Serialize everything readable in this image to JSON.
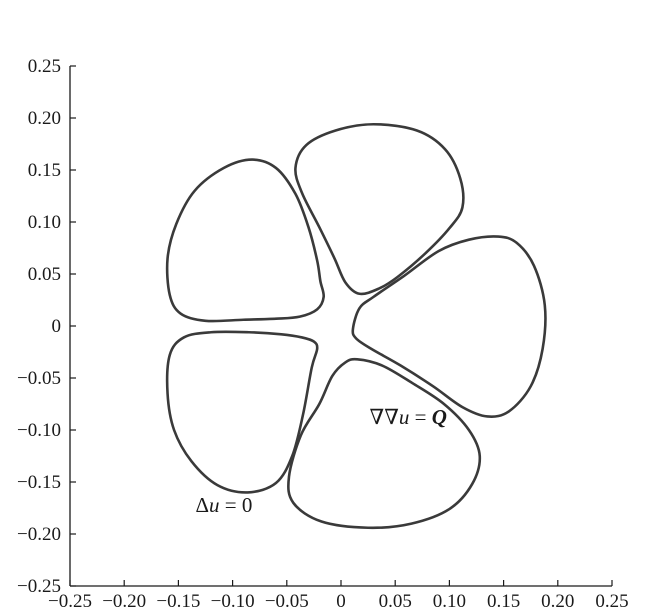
{
  "chart_data": {
    "type": "line",
    "title": "",
    "xlabel": "",
    "ylabel": "",
    "xlim": [
      -0.25,
      0.25
    ],
    "ylim": [
      -0.25,
      0.25
    ],
    "grid": false,
    "legend": "none",
    "x_ticks": [
      -0.25,
      -0.2,
      -0.15,
      -0.1,
      -0.05,
      0,
      0.05,
      0.1,
      0.15,
      0.2,
      0.25
    ],
    "x_tick_labels": [
      "−0.25",
      "−0.20",
      "−0.15",
      "−0.10",
      "−0.05",
      "0",
      "0.05",
      "0.10",
      "0.15",
      "0.20",
      "0.25"
    ],
    "y_ticks": [
      0.25,
      0.2,
      0.15,
      0.1,
      0.05,
      0,
      -0.05,
      -0.1,
      -0.15,
      -0.2,
      -0.25
    ],
    "y_tick_labels": [
      "0.25",
      "0.20",
      "0.15",
      "0.10",
      "0.05",
      "0",
      "−0.05",
      "−0.10",
      "−0.15",
      "−0.20",
      "−0.25"
    ],
    "line_color": "#3a3a3a",
    "series": [
      {
        "closed": true,
        "points": [
          [
            -0.019,
            0.043
          ],
          [
            -0.022,
            0.063
          ],
          [
            -0.03,
            0.095
          ],
          [
            -0.042,
            0.127
          ],
          [
            -0.06,
            0.152
          ],
          [
            -0.082,
            0.16
          ],
          [
            -0.108,
            0.152
          ],
          [
            -0.135,
            0.13
          ],
          [
            -0.152,
            0.098
          ],
          [
            -0.16,
            0.065
          ],
          [
            -0.158,
            0.03
          ],
          [
            -0.148,
            0.012
          ],
          [
            -0.125,
            0.005
          ],
          [
            -0.09,
            0.006
          ],
          [
            -0.06,
            0.007
          ],
          [
            -0.038,
            0.009
          ],
          [
            -0.022,
            0.016
          ],
          [
            -0.016,
            0.028
          ]
        ]
      },
      {
        "closed": true,
        "points": [
          [
            0.017,
            0.031
          ],
          [
            0.035,
            0.036
          ],
          [
            0.052,
            0.047
          ],
          [
            0.078,
            0.07
          ],
          [
            0.1,
            0.094
          ],
          [
            0.112,
            0.114
          ],
          [
            0.11,
            0.142
          ],
          [
            0.096,
            0.17
          ],
          [
            0.07,
            0.188
          ],
          [
            0.03,
            0.194
          ],
          [
            -0.005,
            0.188
          ],
          [
            -0.032,
            0.174
          ],
          [
            -0.042,
            0.152
          ],
          [
            -0.036,
            0.128
          ],
          [
            -0.02,
            0.095
          ],
          [
            -0.006,
            0.065
          ],
          [
            0.004,
            0.042
          ]
        ]
      },
      {
        "closed": true,
        "points": [
          [
            0.011,
            -0.003
          ],
          [
            0.017,
            0.017
          ],
          [
            0.03,
            0.028
          ],
          [
            0.058,
            0.048
          ],
          [
            0.09,
            0.072
          ],
          [
            0.118,
            0.083
          ],
          [
            0.145,
            0.086
          ],
          [
            0.162,
            0.08
          ],
          [
            0.178,
            0.058
          ],
          [
            0.188,
            0.02
          ],
          [
            0.186,
            -0.022
          ],
          [
            0.175,
            -0.058
          ],
          [
            0.155,
            -0.082
          ],
          [
            0.135,
            -0.087
          ],
          [
            0.112,
            -0.078
          ],
          [
            0.085,
            -0.058
          ],
          [
            0.055,
            -0.038
          ],
          [
            0.028,
            -0.022
          ],
          [
            0.014,
            -0.012
          ]
        ]
      },
      {
        "closed": true,
        "points": [
          [
            0.015,
            -0.032
          ],
          [
            0.038,
            -0.038
          ],
          [
            0.066,
            -0.055
          ],
          [
            0.095,
            -0.075
          ],
          [
            0.118,
            -0.1
          ],
          [
            0.128,
            -0.125
          ],
          [
            0.121,
            -0.152
          ],
          [
            0.1,
            -0.176
          ],
          [
            0.065,
            -0.19
          ],
          [
            0.025,
            -0.194
          ],
          [
            -0.018,
            -0.188
          ],
          [
            -0.044,
            -0.17
          ],
          [
            -0.048,
            -0.145
          ],
          [
            -0.037,
            -0.105
          ],
          [
            -0.02,
            -0.075
          ],
          [
            -0.008,
            -0.048
          ],
          [
            0.004,
            -0.035
          ]
        ]
      },
      {
        "closed": true,
        "points": [
          [
            -0.022,
            -0.022
          ],
          [
            -0.027,
            -0.04
          ],
          [
            -0.035,
            -0.085
          ],
          [
            -0.045,
            -0.125
          ],
          [
            -0.06,
            -0.151
          ],
          [
            -0.086,
            -0.16
          ],
          [
            -0.114,
            -0.153
          ],
          [
            -0.138,
            -0.13
          ],
          [
            -0.154,
            -0.1
          ],
          [
            -0.16,
            -0.065
          ],
          [
            -0.158,
            -0.028
          ],
          [
            -0.145,
            -0.011
          ],
          [
            -0.12,
            -0.006
          ],
          [
            -0.085,
            -0.006
          ],
          [
            -0.055,
            -0.008
          ],
          [
            -0.036,
            -0.011
          ],
          [
            -0.025,
            -0.015
          ]
        ]
      }
    ],
    "annotations": [
      {
        "text": "∇∇u = Q",
        "x": 0.062,
        "y": -0.094
      },
      {
        "text": "Δu = 0",
        "x": -0.108,
        "y": -0.179
      }
    ]
  }
}
